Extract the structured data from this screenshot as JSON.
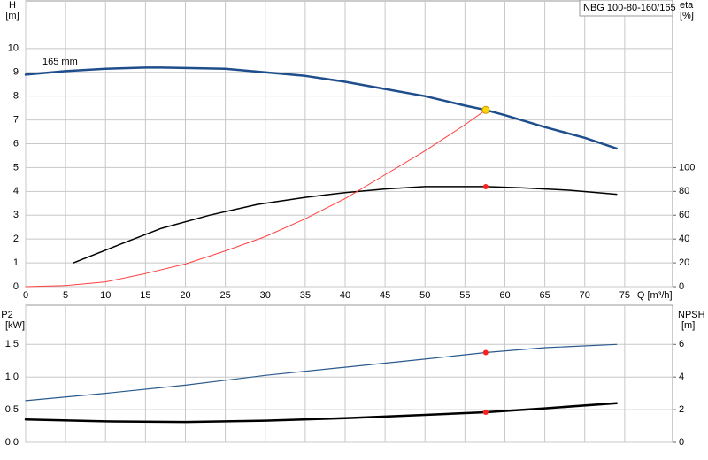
{
  "chart_data": [
    {
      "type": "line",
      "title": "NBG 100-80-160/165",
      "ylabel": "H",
      "yunit": "[m]",
      "y2label": "eta",
      "y2unit": "[%]",
      "xlabel": "Q [m³/h]",
      "annotation": "165 mm",
      "xlim": [
        0,
        81
      ],
      "xticks": [
        0,
        5,
        10,
        15,
        20,
        25,
        30,
        35,
        40,
        45,
        50,
        55,
        60,
        65,
        70,
        75
      ],
      "show_xtick_labels": true,
      "ylim": [
        0,
        12
      ],
      "yticks": [
        0,
        1,
        2,
        3,
        4,
        5,
        6,
        7,
        8,
        9,
        10
      ],
      "y2lim": [
        0,
        240
      ],
      "y2ticks": [
        0,
        20,
        40,
        60,
        80,
        100
      ],
      "grid": true,
      "series": [
        {
          "color": "#1f4e8c",
          "width": 2.5,
          "x": [
            0,
            5,
            10,
            15,
            17,
            20,
            25,
            30,
            35,
            40,
            45,
            50,
            55,
            57.6,
            60,
            65,
            70,
            74
          ],
          "values": [
            8.9,
            9.05,
            9.15,
            9.2,
            9.2,
            9.18,
            9.15,
            9.0,
            8.85,
            8.6,
            8.3,
            8.0,
            7.6,
            7.42,
            7.2,
            6.7,
            6.25,
            5.8
          ]
        },
        {
          "color": "#000000",
          "width": 1.5,
          "axis": "y2",
          "x": [
            6,
            12,
            17,
            23,
            29,
            35,
            40,
            45,
            50,
            57.6,
            62,
            68,
            74
          ],
          "values": [
            20,
            36,
            49,
            60,
            69,
            75,
            79,
            82,
            84,
            84,
            83,
            81,
            77.6
          ]
        },
        {
          "color": "#ff4040",
          "width": 1,
          "x": [
            0,
            5,
            10,
            15,
            20,
            25,
            30,
            35,
            40,
            45,
            50,
            55,
            57.6
          ],
          "values": [
            0,
            0.05,
            0.2,
            0.55,
            0.95,
            1.5,
            2.1,
            2.85,
            3.7,
            4.7,
            5.7,
            6.8,
            7.42
          ]
        },
        {
          "style": "marker",
          "color": "#ffd700",
          "x": [
            57.6
          ],
          "values": [
            7.42
          ]
        },
        {
          "style": "marker",
          "color": "#ff2020",
          "axis": "y2",
          "x": [
            57.6
          ],
          "values": [
            84
          ]
        }
      ]
    },
    {
      "type": "line",
      "ylabel": "P2",
      "yunit": "[kW]",
      "y2label": "NPSH",
      "y2unit": "[m]",
      "xlim": [
        0,
        81
      ],
      "xticks": [
        0,
        5,
        10,
        15,
        20,
        25,
        30,
        35,
        40,
        45,
        50,
        55,
        60,
        65,
        70,
        75
      ],
      "show_xtick_labels": false,
      "ylim": [
        0,
        2.1
      ],
      "yticks": [
        {
          "value": 0,
          "label": "0.0"
        },
        0.5,
        {
          "value": 1,
          "label": "1.0"
        },
        1.5
      ],
      "y2lim": [
        0,
        8.4
      ],
      "y2ticks": [
        0,
        2,
        4,
        6
      ],
      "grid": true,
      "series": [
        {
          "color": "#2a5a8c",
          "width": 1.2,
          "axis": "y2",
          "x": [
            0,
            10,
            20,
            30,
            40,
            50,
            57.6,
            65,
            74
          ],
          "values": [
            2.55,
            3.0,
            3.5,
            4.1,
            4.6,
            5.1,
            5.5,
            5.8,
            6.0
          ]
        },
        {
          "color": "#000000",
          "width": 2.5,
          "x": [
            0,
            10,
            20,
            30,
            40,
            50,
            57.6,
            65,
            74
          ],
          "values": [
            0.35,
            0.32,
            0.31,
            0.33,
            0.37,
            0.42,
            0.46,
            0.52,
            0.6
          ]
        },
        {
          "style": "marker",
          "color": "#ff2020",
          "axis": "y2",
          "x": [
            57.6
          ],
          "values": [
            5.5
          ]
        },
        {
          "style": "marker",
          "color": "#ff2020",
          "x": [
            57.6
          ],
          "values": [
            0.46
          ]
        }
      ]
    }
  ]
}
